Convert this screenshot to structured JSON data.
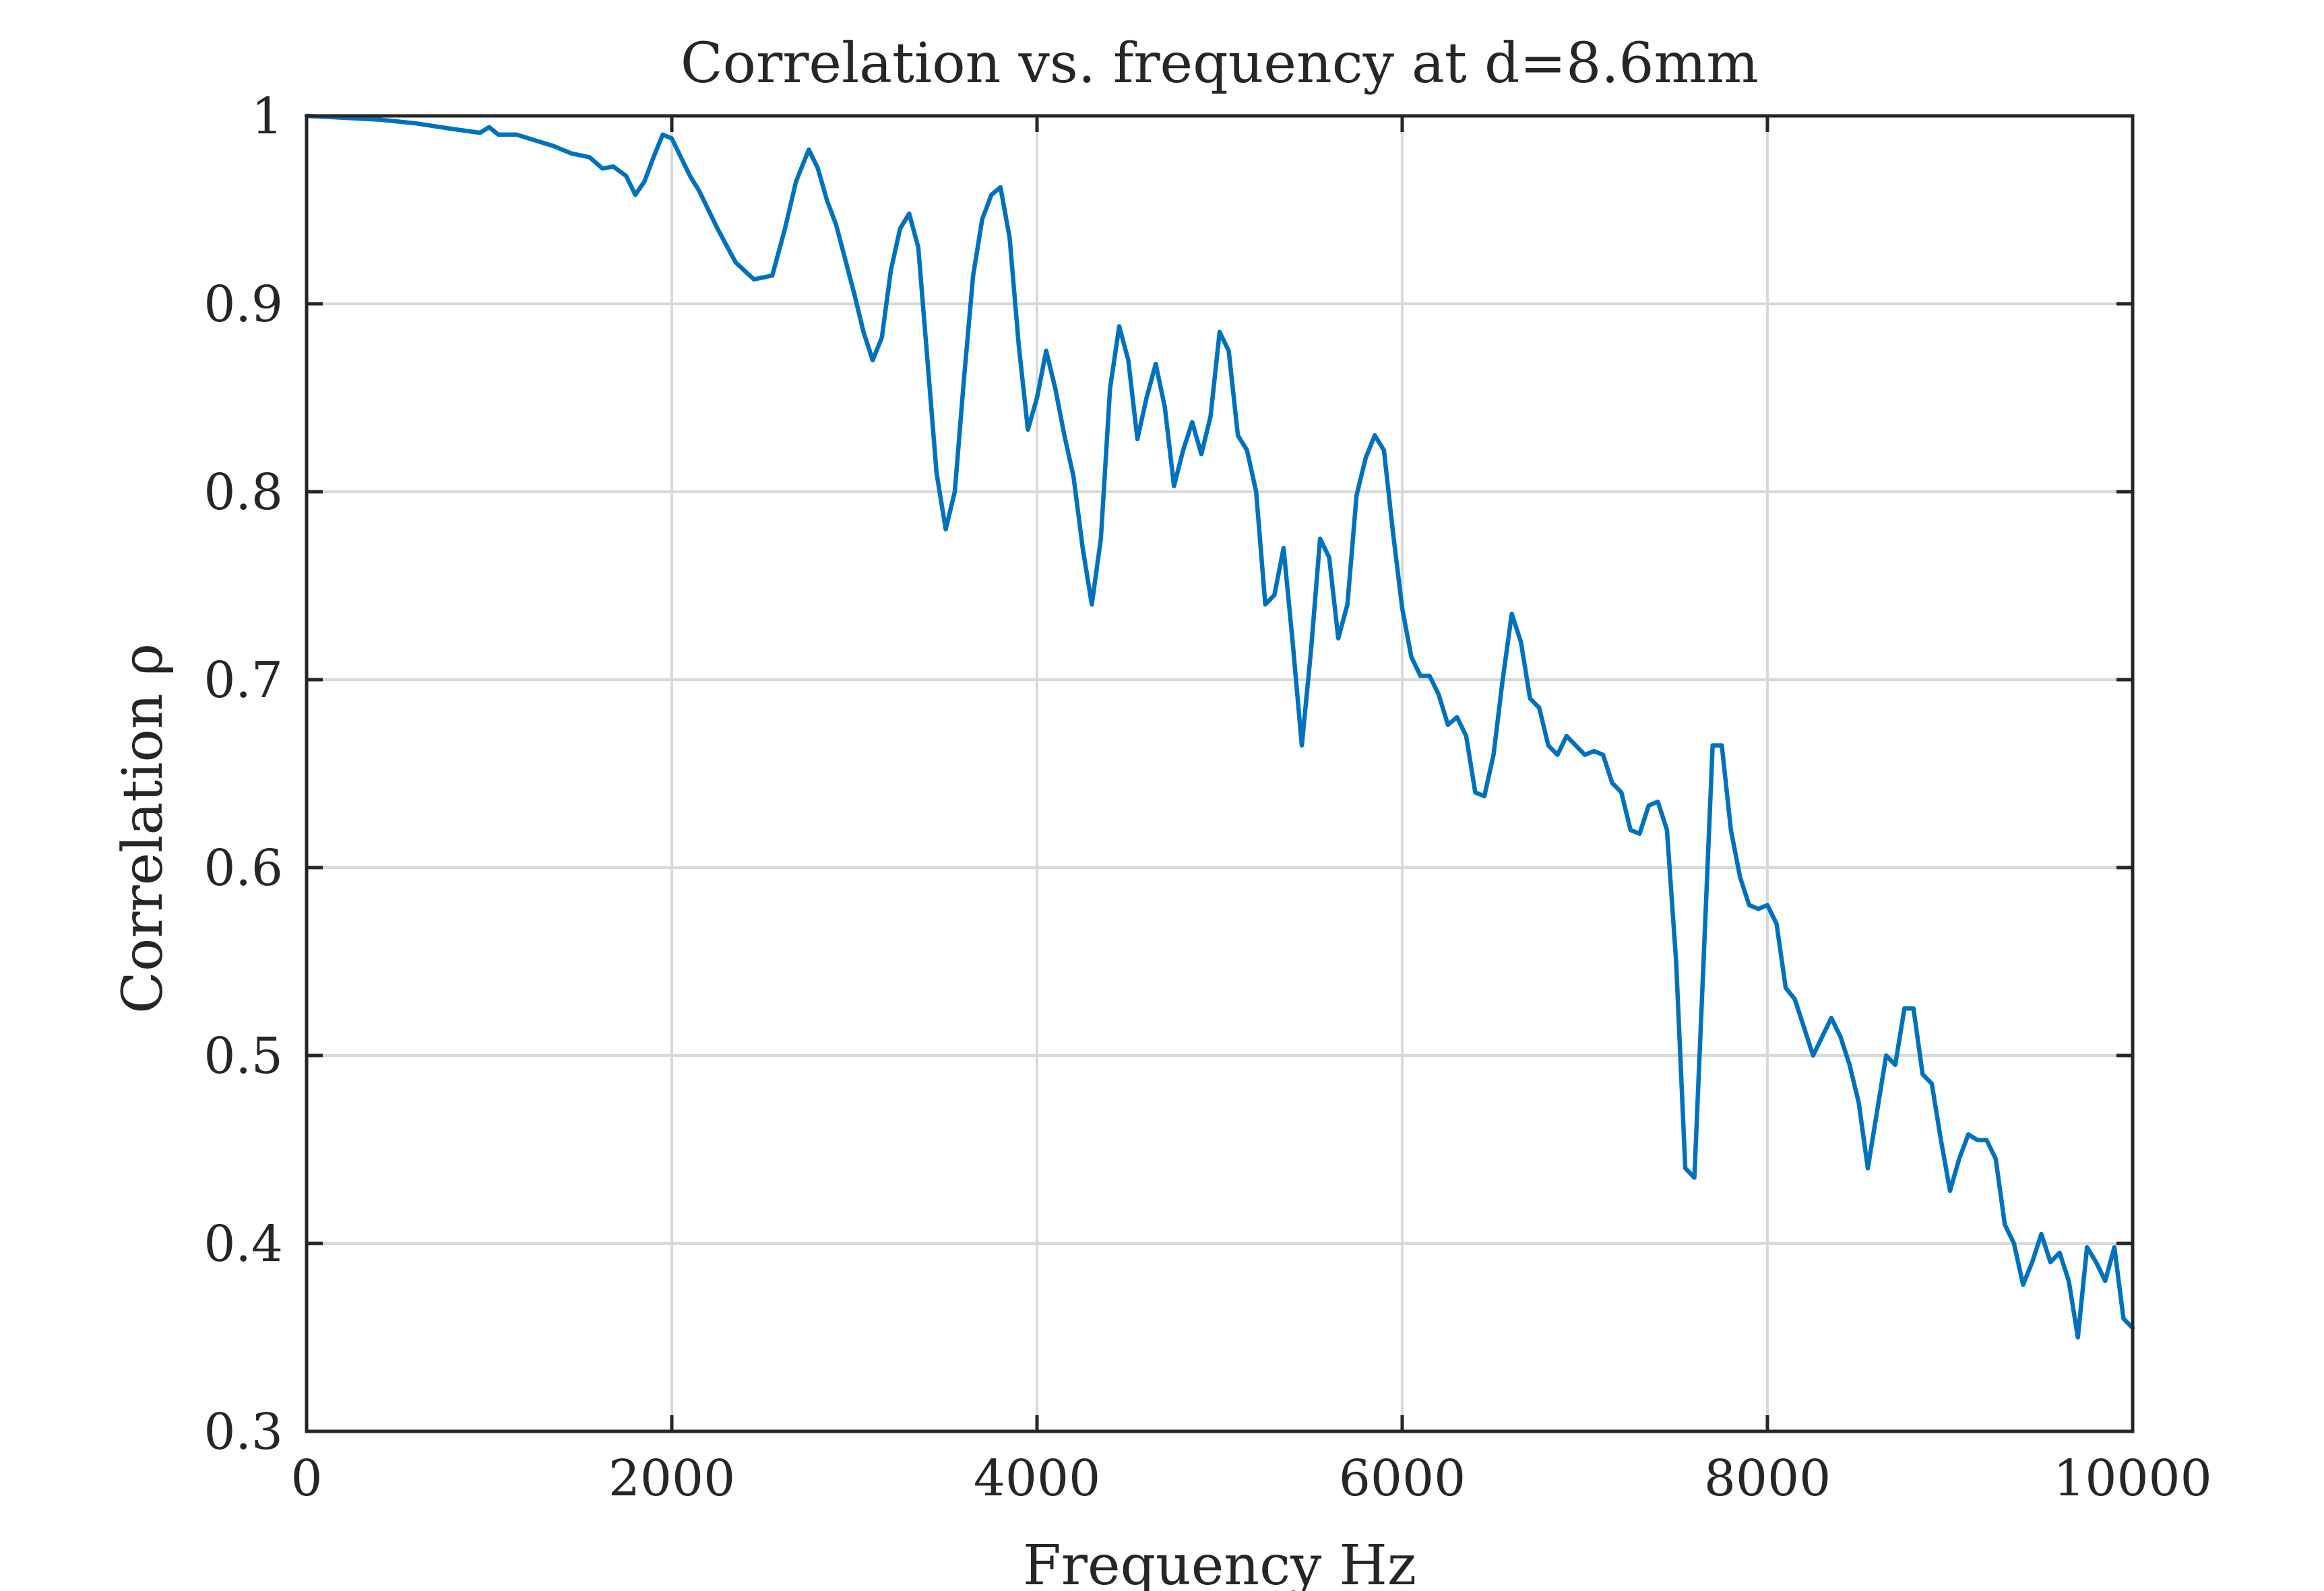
{
  "chart_data": {
    "type": "line",
    "title": "Correlation vs. frequency at d=8.6mm",
    "xlabel": "Frequency Hz",
    "ylabel": "Correlation ρ",
    "xlim": [
      0,
      10000
    ],
    "ylim": [
      0.3,
      1
    ],
    "xticks": [
      0,
      2000,
      4000,
      6000,
      8000,
      10000
    ],
    "xtick_labels": [
      "0",
      "2000",
      "4000",
      "6000",
      "8000",
      "10000"
    ],
    "yticks": [
      0.3,
      0.4,
      0.5,
      0.6,
      0.7,
      0.8,
      0.9,
      1
    ],
    "ytick_labels": [
      "0.3",
      "0.4",
      "0.5",
      "0.6",
      "0.7",
      "0.8",
      "0.9",
      "1"
    ],
    "grid": true,
    "line_color": "#0072BD",
    "axis_color": "#262626",
    "grid_color": "#D9D9D9",
    "series": [
      {
        "x": [
          0,
          200,
          400,
          600,
          800,
          950,
          1000,
          1050,
          1150,
          1250,
          1350,
          1450,
          1550,
          1620,
          1680,
          1750,
          1800,
          1850,
          1900,
          1950,
          2000,
          2050,
          2100,
          2150,
          2250,
          2350,
          2450,
          2550,
          2620,
          2680,
          2750,
          2800,
          2850,
          2900,
          3000,
          3050,
          3100,
          3150,
          3200,
          3250,
          3300,
          3350,
          3400,
          3450,
          3500,
          3550,
          3600,
          3650,
          3700,
          3750,
          3800,
          3850,
          3900,
          3950,
          4000,
          4050,
          4100,
          4150,
          4200,
          4250,
          4300,
          4350,
          4400,
          4450,
          4500,
          4550,
          4600,
          4650,
          4700,
          4750,
          4800,
          4850,
          4900,
          4950,
          5000,
          5050,
          5100,
          5150,
          5200,
          5250,
          5300,
          5350,
          5400,
          5450,
          5500,
          5550,
          5600,
          5650,
          5700,
          5750,
          5800,
          5850,
          5900,
          5950,
          6000,
          6050,
          6100,
          6150,
          6200,
          6250,
          6300,
          6350,
          6400,
          6450,
          6500,
          6550,
          6600,
          6650,
          6700,
          6750,
          6800,
          6850,
          6900,
          6950,
          7000,
          7050,
          7100,
          7150,
          7200,
          7250,
          7300,
          7350,
          7400,
          7450,
          7500,
          7550,
          7600,
          7650,
          7700,
          7750,
          7800,
          7850,
          7900,
          7950,
          8000,
          8050,
          8100,
          8150,
          8200,
          8250,
          8300,
          8350,
          8400,
          8450,
          8500,
          8550,
          8600,
          8650,
          8700,
          8750,
          8800,
          8850,
          8900,
          8950,
          9000,
          9050,
          9100,
          9150,
          9200,
          9250,
          9300,
          9350,
          9400,
          9450,
          9500,
          9550,
          9600,
          9650,
          9700,
          9750,
          9800,
          9850,
          9900,
          9950,
          10000
        ],
        "y": [
          1.0,
          0.999,
          0.998,
          0.996,
          0.993,
          0.991,
          0.994,
          0.99,
          0.99,
          0.987,
          0.984,
          0.98,
          0.978,
          0.972,
          0.973,
          0.968,
          0.958,
          0.965,
          0.978,
          0.99,
          0.988,
          0.978,
          0.968,
          0.96,
          0.94,
          0.922,
          0.913,
          0.915,
          0.94,
          0.965,
          0.982,
          0.972,
          0.955,
          0.942,
          0.905,
          0.885,
          0.87,
          0.882,
          0.918,
          0.94,
          0.948,
          0.93,
          0.87,
          0.81,
          0.78,
          0.8,
          0.86,
          0.915,
          0.945,
          0.958,
          0.962,
          0.935,
          0.878,
          0.833,
          0.85,
          0.875,
          0.855,
          0.83,
          0.808,
          0.77,
          0.74,
          0.775,
          0.855,
          0.888,
          0.87,
          0.828,
          0.85,
          0.868,
          0.845,
          0.803,
          0.822,
          0.837,
          0.82,
          0.84,
          0.885,
          0.875,
          0.83,
          0.822,
          0.8,
          0.74,
          0.745,
          0.77,
          0.72,
          0.665,
          0.715,
          0.775,
          0.765,
          0.722,
          0.74,
          0.798,
          0.818,
          0.83,
          0.822,
          0.778,
          0.738,
          0.712,
          0.702,
          0.702,
          0.692,
          0.676,
          0.68,
          0.67,
          0.64,
          0.638,
          0.66,
          0.7,
          0.735,
          0.72,
          0.69,
          0.685,
          0.665,
          0.66,
          0.67,
          0.665,
          0.66,
          0.662,
          0.66,
          0.645,
          0.64,
          0.62,
          0.618,
          0.633,
          0.635,
          0.62,
          0.55,
          0.44,
          0.435,
          0.55,
          0.665,
          0.665,
          0.62,
          0.595,
          0.58,
          0.578,
          0.58,
          0.57,
          0.536,
          0.53,
          0.515,
          0.5,
          0.51,
          0.52,
          0.51,
          0.495,
          0.475,
          0.44,
          0.47,
          0.5,
          0.495,
          0.525,
          0.525,
          0.49,
          0.485,
          0.455,
          0.428,
          0.445,
          0.458,
          0.455,
          0.455,
          0.445,
          0.41,
          0.4,
          0.378,
          0.39,
          0.405,
          0.39,
          0.395,
          0.38,
          0.35,
          0.398,
          0.39,
          0.38,
          0.398,
          0.36,
          0.355
        ]
      }
    ]
  }
}
